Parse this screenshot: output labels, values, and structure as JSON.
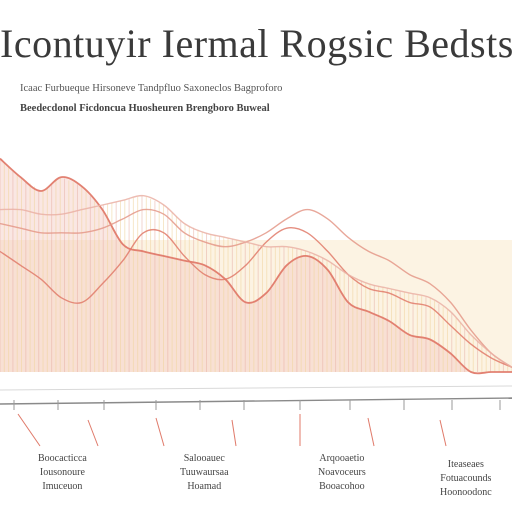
{
  "chart_data": {
    "type": "area",
    "title": "Icontuyir Iermal Rogsic Bedsts",
    "subtitle_lines": [
      "Icaac Furbueque Hirsoneve Tandpfluo Saxoneclos Bagproforo",
      "Beedecdonol Ficdoncua Huosheuren Brengboro Buweal"
    ],
    "xlabel": "",
    "ylabel": "",
    "x": [
      0,
      1,
      2,
      3,
      4,
      5,
      6,
      7,
      8,
      9,
      10,
      11,
      12,
      13,
      14,
      15,
      16,
      17,
      18,
      19,
      20,
      21,
      22,
      23,
      24,
      25
    ],
    "ylim": [
      0,
      100
    ],
    "grid": false,
    "series": [
      {
        "name": "",
        "color": "#e07a6a",
        "values": [
          92,
          84,
          78,
          84,
          80,
          70,
          55,
          52,
          50,
          48,
          46,
          40,
          30,
          34,
          46,
          50,
          44,
          30,
          26,
          22,
          16,
          14,
          8,
          0,
          0,
          0
        ]
      },
      {
        "name": "",
        "color": "#e07a6a",
        "values": [
          52,
          46,
          40,
          32,
          30,
          38,
          48,
          60,
          60,
          50,
          42,
          40,
          46,
          56,
          62,
          60,
          52,
          42,
          36,
          34,
          30,
          28,
          20,
          12,
          6,
          2
        ]
      },
      {
        "name": "",
        "color": "#e49888",
        "values": [
          64,
          62,
          60,
          60,
          60,
          62,
          66,
          70,
          68,
          60,
          56,
          54,
          56,
          60,
          66,
          70,
          66,
          58,
          52,
          48,
          42,
          38,
          30,
          18,
          8,
          2
        ]
      },
      {
        "name": "",
        "color": "#eab0a4",
        "values": [
          70,
          70,
          68,
          68,
          70,
          72,
          74,
          76,
          72,
          64,
          60,
          58,
          56,
          54,
          54,
          52,
          48,
          42,
          38,
          36,
          34,
          32,
          26,
          16,
          8,
          2
        ]
      }
    ],
    "fill_colors": [
      "#f4c9c0",
      "#f7ddb0"
    ],
    "baseline_color": "#8a8a8a"
  },
  "annotations": [
    {
      "line1": "Boocacticca",
      "line2": "Iousonoure",
      "line3": "Imuceuon"
    },
    {
      "line1": "Salooauec",
      "line2": "Tuuwaursaa",
      "line3": "Hoamad"
    },
    {
      "line1": "Arqooaetio",
      "line2": "Noavoceurs",
      "line3": "Booacohoo"
    },
    {
      "line1": "Iteaseaes",
      "line2": "Fotuacounds",
      "line3": "Hoonoodonc"
    }
  ]
}
